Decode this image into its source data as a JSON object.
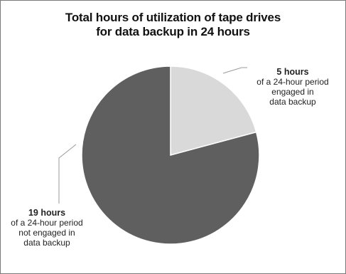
{
  "title_line1": "Total hours of utilization of tape drives",
  "title_line2": "for data backup in 24 hours",
  "chart_data": {
    "type": "pie",
    "title": "Total hours of utilization of tape drives for data backup in 24 hours",
    "slices": [
      {
        "label": "5 hours",
        "description": "of a 24-hour period engaged in data backup",
        "value": 5,
        "color": "#d9d9d9"
      },
      {
        "label": "19 hours",
        "description": "of a 24-hour period not engaged in data backup",
        "value": 19,
        "color": "#5f5f5f"
      }
    ],
    "total": 24
  },
  "labels": {
    "small": {
      "hours": "5 hours",
      "desc": "of a 24-hour period\nengaged in\ndata backup"
    },
    "large": {
      "hours": "19 hours",
      "desc": "of a 24-hour period\nnot engaged in\ndata backup"
    }
  },
  "colors": {
    "engaged": "#d9d9d9",
    "not_engaged": "#5f5f5f",
    "outline": "#ffffff",
    "leader": "#9a9a9a"
  }
}
